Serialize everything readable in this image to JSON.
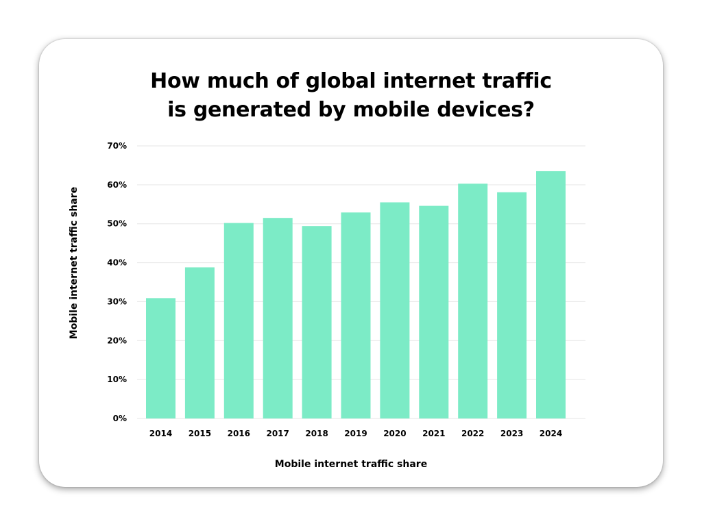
{
  "chart_data": {
    "type": "bar",
    "title_lines": [
      "How much of global internet traffic",
      "is generated by mobile devices?"
    ],
    "xlabel": "Mobile internet traffic share",
    "ylabel": "Mobile internet traffic share",
    "categories": [
      "2014",
      "2015",
      "2016",
      "2017",
      "2018",
      "2019",
      "2020",
      "2021",
      "2022",
      "2023",
      "2024"
    ],
    "values": [
      30.9,
      38.8,
      50.2,
      51.5,
      49.4,
      52.9,
      55.5,
      54.6,
      60.3,
      58.1,
      63.5
    ],
    "ylim": [
      0,
      70
    ],
    "yticks": [
      0,
      10,
      20,
      30,
      40,
      50,
      60,
      70
    ],
    "ytick_labels": [
      "0%",
      "10%",
      "20%",
      "30%",
      "40%",
      "50%",
      "60%",
      "70%"
    ],
    "grid": true,
    "legend": "none",
    "bar_color": "#7CEBC6",
    "grid_color": "#E6E6E6"
  }
}
